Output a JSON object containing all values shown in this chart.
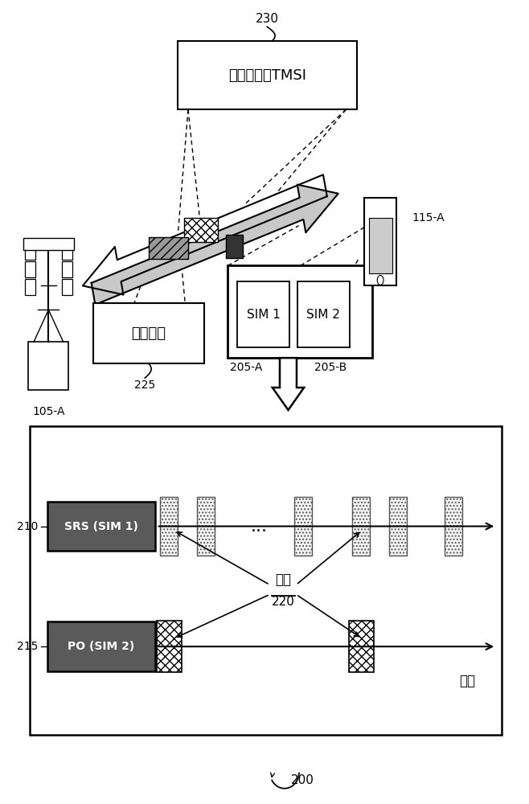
{
  "bg_color": "#ffffff",
  "title_box_text": "注册响应和TMSI",
  "reg_req_text": "注册请求",
  "conflict_text": "冲突",
  "time_text": "时间",
  "label_230": "230",
  "label_225": "225",
  "label_105A": "105-A",
  "label_115A": "115-A",
  "label_205A": "205-A",
  "label_205B": "205-B",
  "label_200": "200",
  "label_210": "210",
  "label_215": "215",
  "label_220": "220"
}
